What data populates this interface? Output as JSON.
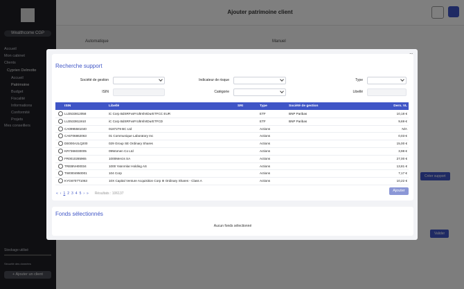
{
  "sidebar": {
    "brand": "Wealthcome CGP",
    "menu": [
      "Accueil",
      "Mon cabinet",
      "Clients"
    ],
    "client": "Cyprien Delmotte",
    "submenu": [
      "Accueil",
      "Patrimoine",
      "Budget",
      "Fiscalité",
      "Informations",
      "Conformité",
      "Projets"
    ],
    "footer_menu": "Mes conseillers",
    "storage": "Stockage utilisé",
    "storage_note": "Sécurité des données",
    "add_client": "+ Ajouter un client"
  },
  "header": {
    "title": "Ajouter patrimoine client"
  },
  "background": {
    "mode_auto": "Automatique",
    "mode_manual": "Manuel",
    "create": "Créer support",
    "validate": "Valider"
  },
  "modal": {
    "close": "×",
    "title": "Recherche support",
    "filters": [
      {
        "label": "Société de gestion",
        "kind": "select"
      },
      {
        "label": "Indicateur de risque",
        "kind": "select"
      },
      {
        "label": "Type",
        "kind": "select"
      },
      {
        "label": "ISIN",
        "kind": "input"
      },
      {
        "label": "Catégorie",
        "kind": "select"
      },
      {
        "label": "Libellé",
        "kind": "input"
      }
    ],
    "table": {
      "headers": [
        "ISIN",
        "Libellé",
        "SRI",
        "Type",
        "Société de gestion",
        "Dern. VL"
      ],
      "rows": [
        [
          "LU2533812058",
          "iC Corp BdSRFxsFrUltrshrtDurETFCC EUR",
          "",
          "ETF",
          "BNP Paribas",
          "10,18 €"
        ],
        [
          "LU2533811910",
          "iC Corp BdSRFxsFrUltrshrtDurETFCD",
          "",
          "ETF",
          "BNP Paribas",
          "9,69 €"
        ],
        [
          "CA0995581040",
          "0187279 BC Ltd",
          "",
          "Actions",
          "",
          "N/A"
        ],
        [
          "CA6706862063",
          "01 Communique Laboratory Inc",
          "",
          "Actions",
          "",
          "0,03 €"
        ],
        [
          "DE000A2LQ200",
          "029 Group SE Ordinary Shares",
          "",
          "Actions",
          "",
          "15,00 €"
        ],
        [
          "KR7366030005",
          "09Women Co Ltd",
          "",
          "Actions",
          "",
          "3,98 €"
        ],
        [
          "FR0010285965",
          "1000Mercis SA",
          "",
          "Actions",
          "",
          "27,00 €"
        ],
        [
          "TREBNH00034",
          "1000 Yatırımlar Holding AS",
          "",
          "Actions",
          "",
          "13,81 €"
        ],
        [
          "TW0004950001",
          "104 Corp",
          "",
          "Actions",
          "",
          "7,17 €"
        ],
        [
          "KYG6707T1063",
          "10X Capital Venture Acquisition Corp III Ordinary Shares - Class A",
          "",
          "Actions",
          "",
          "10,22 €"
        ]
      ]
    },
    "pagination": [
      "«",
      "‹",
      "1",
      "2",
      "3",
      "4",
      "5",
      "›",
      "»"
    ],
    "results": "Résultats : 106137",
    "add": "Ajouter",
    "selected_title": "Fonds sélectionnés",
    "selected_empty": "Aucun fonds sélectionné"
  }
}
